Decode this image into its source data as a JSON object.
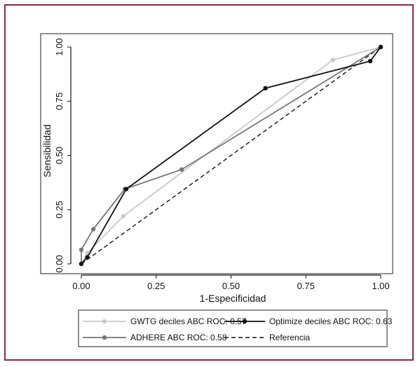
{
  "chart_data": {
    "type": "line",
    "xlabel": "1-Especificidad",
    "ylabel": "Sensibilidad",
    "xlim": [
      0,
      1
    ],
    "ylim": [
      0,
      1
    ],
    "x_ticks": [
      "0.00",
      "0.25",
      "0.50",
      "0.75",
      "1.00"
    ],
    "y_ticks": [
      "0.00",
      "0.25",
      "0.50",
      "0.75",
      "1.00"
    ],
    "grid": false,
    "legend_position": "bottom",
    "series": [
      {
        "name": "GWTG deciles ABC ROC: 0.57",
        "color": "#c8c8c8",
        "markers": true,
        "points": [
          [
            0.0,
            0.0
          ],
          [
            0.02,
            0.05
          ],
          [
            0.14,
            0.22
          ],
          [
            0.84,
            0.94
          ],
          [
            1.0,
            1.0
          ]
        ]
      },
      {
        "name": "Optimize deciles ABC ROC: 0.63",
        "color": "#111111",
        "markers": true,
        "points": [
          [
            0.0,
            0.0
          ],
          [
            0.02,
            0.03
          ],
          [
            0.15,
            0.345
          ],
          [
            0.615,
            0.81
          ],
          [
            0.965,
            0.935
          ],
          [
            1.0,
            1.0
          ]
        ]
      },
      {
        "name": "ADHERE ABC ROC: 0.58",
        "color": "#777777",
        "markers": true,
        "points": [
          [
            0.0,
            0.0
          ],
          [
            0.0,
            0.065
          ],
          [
            0.04,
            0.16
          ],
          [
            0.145,
            0.345
          ],
          [
            0.335,
            0.435
          ],
          [
            1.0,
            1.0
          ]
        ]
      },
      {
        "name": "Referencia",
        "color": "#111111",
        "dashed": true,
        "markers": false,
        "points": [
          [
            0.0,
            0.0
          ],
          [
            1.0,
            1.0
          ]
        ]
      }
    ]
  }
}
